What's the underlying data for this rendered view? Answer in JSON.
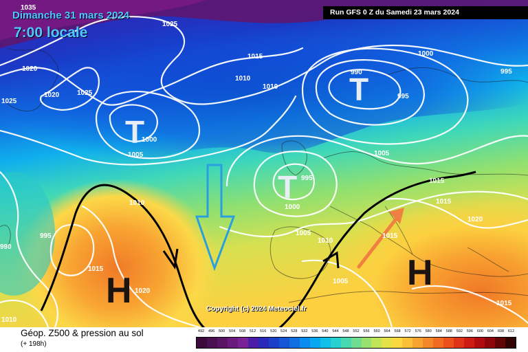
{
  "header": {
    "date": "Dimanche 31 mars 2024",
    "time": "7:00 locale",
    "run": "Run GFS 0 Z du Samedi 23 mars 2024"
  },
  "copyright": "Copyright (c) 2024 Meteociel.fr",
  "legend": {
    "title": "Géop. Z500 & pression au sol",
    "forecast_hour": "(+ 198h)",
    "scale_values": [
      "492",
      "496",
      "500",
      "504",
      "508",
      "512",
      "516",
      "520",
      "524",
      "528",
      "532",
      "536",
      "540",
      "544",
      "548",
      "552",
      "556",
      "560",
      "564",
      "568",
      "572",
      "576",
      "580",
      "584",
      "588",
      "592",
      "596",
      "600",
      "604",
      "608",
      "612"
    ],
    "scale_colors": [
      "#3c0b3c",
      "#4b1050",
      "#5a1466",
      "#6a1a7e",
      "#7a2198",
      "#4a1ca8",
      "#2a2ab8",
      "#1c3fc8",
      "#1555d6",
      "#1070e2",
      "#0a8cee",
      "#08a8f0",
      "#10c0e8",
      "#28d0d0",
      "#48d8b0",
      "#70dc90",
      "#98e070",
      "#c0e458",
      "#e4e048",
      "#fcd840",
      "#fcc038",
      "#f8a430",
      "#f48828",
      "#f06c20",
      "#ec501c",
      "#e03418",
      "#cc1c14",
      "#b00c10",
      "#8c060c",
      "#600406",
      "#300202"
    ]
  },
  "map": {
    "isobar_labels": [
      "1035",
      "1025",
      "1020",
      "1025",
      "1020",
      "1015",
      "1010",
      "1010",
      "990",
      "1000",
      "995",
      "995",
      "1025",
      "1000",
      "1005",
      "1005",
      "995",
      "1000",
      "1010",
      "1015",
      "1020",
      "1005",
      "1010",
      "1015",
      "1015",
      "990",
      "995",
      "1005",
      "1015",
      "1020",
      "1010",
      "1015"
    ],
    "lows": [
      "T",
      "T",
      "T"
    ],
    "highs": [
      "H",
      "H"
    ]
  },
  "colors": {
    "arrow_cold": "#2a9fe0",
    "arrow_warm": "#f08040",
    "front_line": "#000000",
    "label_blue": "#4ec8ff"
  }
}
